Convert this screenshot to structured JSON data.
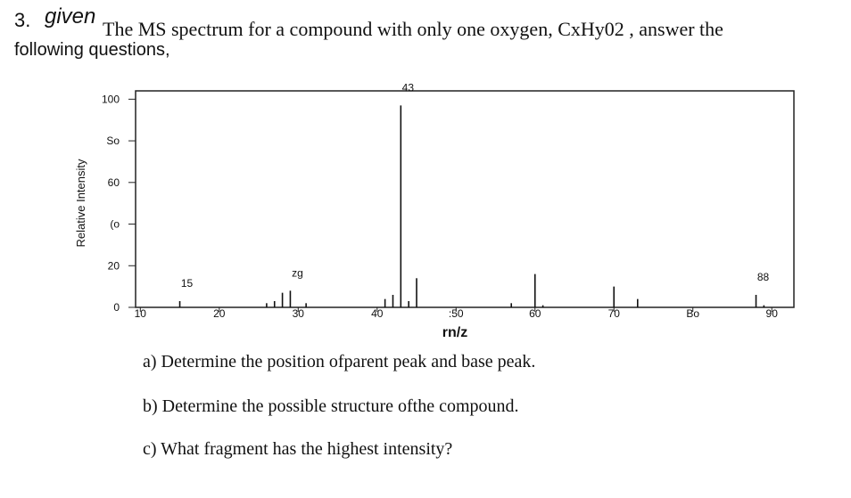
{
  "header": {
    "number": "3.",
    "handwritten": "given",
    "text": "The MS spectrum for a compound with only one oxygen, CxHy02 , answer the",
    "line2": "following questions,"
  },
  "chart_data": {
    "type": "stem",
    "x_label": "rn/z",
    "y_label": "Relative Intensity",
    "x": [
      15,
      26,
      27,
      28,
      29,
      31,
      41,
      42,
      43,
      44,
      45,
      57,
      60,
      61,
      70,
      73,
      88,
      89
    ],
    "values": [
      3,
      2,
      3,
      7,
      8,
      2,
      4,
      6,
      97,
      3,
      14,
      2,
      16,
      1,
      10,
      4,
      6,
      1
    ],
    "peak_labels": [
      "15",
      null,
      null,
      null,
      "zg",
      null,
      null,
      null,
      "43",
      null,
      null,
      null,
      null,
      null,
      null,
      null,
      "88",
      null
    ],
    "color": "#111111",
    "xlim": [
      9.4,
      92.8
    ],
    "ylim": [
      0,
      104
    ],
    "xticks": [
      10,
      20,
      30,
      40,
      {
        "value": 50,
        "label": ":50"
      },
      60,
      70,
      {
        "value": 80,
        "label": "Bo"
      },
      90
    ],
    "yticks": [
      0,
      20,
      {
        "value": 40,
        "label": "(o"
      },
      60,
      {
        "value": 80,
        "label": "So"
      },
      100
    ]
  },
  "questions": [
    "a) Determine the position ofparent peak and base peak.",
    "b) Determine the possible structure ofthe compound.",
    "c) What fragment has the highest intensity?"
  ]
}
